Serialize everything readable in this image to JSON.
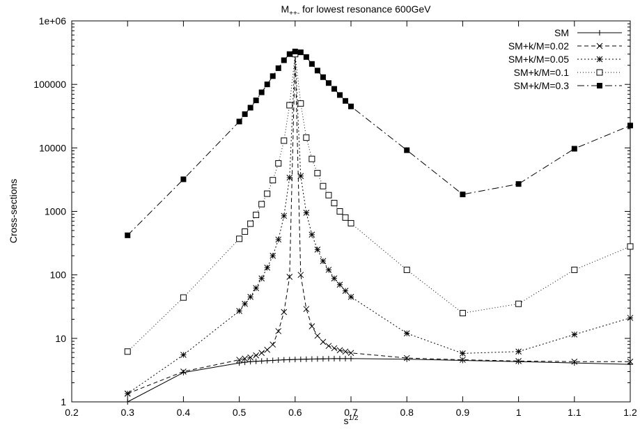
{
  "chart_data": {
    "type": "line",
    "title_main": "M",
    "title_sub": "++-",
    "title_rest": " for lowest resonance 600GeV",
    "xlabel_main": "s",
    "xlabel_sup": "1/2",
    "ylabel": "Cross-sections",
    "xlim": [
      0.2,
      1.2
    ],
    "ylim": [
      1,
      1000000
    ],
    "yscale": "log",
    "grid": false,
    "legend_position": "top-right",
    "xticks": [
      0.2,
      0.3,
      0.4,
      0.5,
      0.6,
      0.7,
      0.8,
      0.9,
      1,
      1.1,
      1.2
    ],
    "xtick_labels": [
      "0.2",
      "0.3",
      "0.4",
      "0.5",
      "0.6",
      "0.7",
      "0.8",
      "0.9",
      "1",
      "1.1",
      "1.2"
    ],
    "yticks": [
      1,
      10,
      100,
      1000,
      10000,
      100000,
      1000000
    ],
    "ytick_labels": [
      "1",
      "10",
      "100",
      "1000",
      "10000",
      "100000",
      "1e+06"
    ],
    "series": [
      {
        "name": "SM",
        "marker": "plus",
        "dash": "",
        "points": [
          [
            0.3,
            1.0
          ],
          [
            0.4,
            2.9
          ],
          [
            0.5,
            4.1
          ],
          [
            0.51,
            4.2
          ],
          [
            0.52,
            4.3
          ],
          [
            0.53,
            4.35
          ],
          [
            0.54,
            4.4
          ],
          [
            0.55,
            4.45
          ],
          [
            0.56,
            4.5
          ],
          [
            0.57,
            4.55
          ],
          [
            0.58,
            4.6
          ],
          [
            0.59,
            4.62
          ],
          [
            0.6,
            4.65
          ],
          [
            0.61,
            4.68
          ],
          [
            0.62,
            4.7
          ],
          [
            0.63,
            4.72
          ],
          [
            0.64,
            4.74
          ],
          [
            0.65,
            4.76
          ],
          [
            0.66,
            4.78
          ],
          [
            0.67,
            4.8
          ],
          [
            0.68,
            4.8
          ],
          [
            0.69,
            4.8
          ],
          [
            0.7,
            4.8
          ],
          [
            0.8,
            4.7
          ],
          [
            0.9,
            4.5
          ],
          [
            1.0,
            4.3
          ],
          [
            1.1,
            4.1
          ],
          [
            1.2,
            3.9
          ]
        ]
      },
      {
        "name": "SM+k/M=0.02",
        "marker": "cross",
        "dash": "6 4",
        "points": [
          [
            0.3,
            1.35
          ],
          [
            0.4,
            3.0
          ],
          [
            0.5,
            4.6
          ],
          [
            0.51,
            4.8
          ],
          [
            0.52,
            5.0
          ],
          [
            0.53,
            5.4
          ],
          [
            0.54,
            5.9
          ],
          [
            0.55,
            6.6
          ],
          [
            0.56,
            8.0
          ],
          [
            0.57,
            13
          ],
          [
            0.58,
            26
          ],
          [
            0.59,
            93
          ],
          [
            0.6,
            300000
          ],
          [
            0.61,
            100
          ],
          [
            0.62,
            29
          ],
          [
            0.63,
            15.5
          ],
          [
            0.64,
            11
          ],
          [
            0.65,
            8.8
          ],
          [
            0.66,
            7.6
          ],
          [
            0.67,
            7.0
          ],
          [
            0.68,
            6.5
          ],
          [
            0.69,
            6.2
          ],
          [
            0.7,
            5.9
          ],
          [
            0.8,
            4.9
          ],
          [
            0.9,
            4.6
          ],
          [
            1.0,
            4.4
          ],
          [
            1.1,
            4.3
          ],
          [
            1.2,
            4.3
          ]
        ]
      },
      {
        "name": "SM+k/M=0.05",
        "marker": "star",
        "dash": "2 3",
        "points": [
          [
            0.3,
            1.35
          ],
          [
            0.4,
            5.5
          ],
          [
            0.5,
            27
          ],
          [
            0.51,
            35
          ],
          [
            0.52,
            45
          ],
          [
            0.53,
            62
          ],
          [
            0.54,
            88
          ],
          [
            0.55,
            130
          ],
          [
            0.56,
            200
          ],
          [
            0.57,
            360
          ],
          [
            0.58,
            850
          ],
          [
            0.59,
            3400
          ],
          [
            0.6,
            300000
          ],
          [
            0.61,
            3600
          ],
          [
            0.62,
            950
          ],
          [
            0.63,
            430
          ],
          [
            0.64,
            250
          ],
          [
            0.65,
            165
          ],
          [
            0.66,
            120
          ],
          [
            0.67,
            88
          ],
          [
            0.68,
            70
          ],
          [
            0.69,
            56
          ],
          [
            0.7,
            45
          ],
          [
            0.8,
            12
          ],
          [
            0.9,
            5.8
          ],
          [
            1.0,
            6.2
          ],
          [
            1.1,
            11.5
          ],
          [
            1.2,
            21
          ]
        ]
      },
      {
        "name": "SM+k/M=0.1",
        "marker": "open-square",
        "dash": "1 3",
        "points": [
          [
            0.3,
            6.2
          ],
          [
            0.4,
            44
          ],
          [
            0.5,
            370
          ],
          [
            0.51,
            480
          ],
          [
            0.52,
            640
          ],
          [
            0.53,
            880
          ],
          [
            0.54,
            1300
          ],
          [
            0.55,
            1900
          ],
          [
            0.56,
            3100
          ],
          [
            0.57,
            5700
          ],
          [
            0.58,
            13000
          ],
          [
            0.59,
            47000
          ],
          [
            0.6,
            300000
          ],
          [
            0.61,
            50000
          ],
          [
            0.62,
            14500
          ],
          [
            0.63,
            6700
          ],
          [
            0.64,
            4000
          ],
          [
            0.65,
            2500
          ],
          [
            0.66,
            1800
          ],
          [
            0.67,
            1350
          ],
          [
            0.68,
            1000
          ],
          [
            0.69,
            800
          ],
          [
            0.7,
            650
          ],
          [
            0.8,
            120
          ],
          [
            0.9,
            25
          ],
          [
            1.0,
            35
          ],
          [
            1.1,
            120
          ],
          [
            1.2,
            280
          ]
        ]
      },
      {
        "name": "SM+k/M=0.3",
        "marker": "filled-square",
        "dash": "10 4 2 4",
        "points": [
          [
            0.3,
            420
          ],
          [
            0.4,
            3200
          ],
          [
            0.5,
            26000
          ],
          [
            0.51,
            34000
          ],
          [
            0.52,
            43000
          ],
          [
            0.53,
            56000
          ],
          [
            0.54,
            75000
          ],
          [
            0.55,
            100000
          ],
          [
            0.56,
            135000
          ],
          [
            0.57,
            180000
          ],
          [
            0.58,
            240000
          ],
          [
            0.59,
            300000
          ],
          [
            0.6,
            330000
          ],
          [
            0.61,
            320000
          ],
          [
            0.62,
            270000
          ],
          [
            0.63,
            210000
          ],
          [
            0.64,
            165000
          ],
          [
            0.65,
            130000
          ],
          [
            0.66,
            105000
          ],
          [
            0.67,
            85000
          ],
          [
            0.68,
            68000
          ],
          [
            0.69,
            55000
          ],
          [
            0.7,
            45000
          ],
          [
            0.8,
            9200
          ],
          [
            0.9,
            1850
          ],
          [
            1.0,
            2700
          ],
          [
            1.1,
            9700
          ],
          [
            1.2,
            22500
          ]
        ]
      }
    ]
  }
}
